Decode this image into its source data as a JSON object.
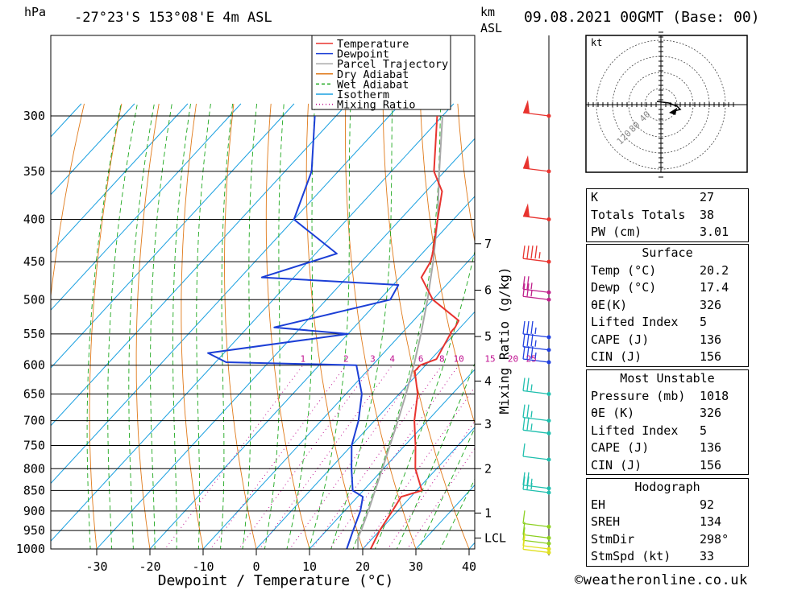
{
  "header": {
    "hpa_label": "hPa",
    "location": "-27°23'S  153°08'E  4m  ASL",
    "km_label": "km",
    "asl_label": "ASL",
    "datetime": "09.08.2021  00GMT  (Base: 00)"
  },
  "legend": [
    {
      "label": "Temperature",
      "color": "#e8342f",
      "style": "solid"
    },
    {
      "label": "Dewpoint",
      "color": "#1c3fd6",
      "style": "solid"
    },
    {
      "label": "Parcel Trajectory",
      "color": "#a8a8a8",
      "style": "solid"
    },
    {
      "label": "Dry Adiabat",
      "color": "#e07a1a",
      "style": "solid"
    },
    {
      "label": "Wet Adiabat",
      "color": "#1fa81f",
      "style": "dashed"
    },
    {
      "label": "Isotherm",
      "color": "#1aa0e0",
      "style": "solid"
    },
    {
      "label": "Mixing Ratio",
      "color": "#c01090",
      "style": "dotted"
    }
  ],
  "chart_data": {
    "type": "skew-t",
    "xlabel": "Dewpoint / Temperature (°C)",
    "ylabel_left": "hPa",
    "ylabel_right": "Mixing Ratio (g/kg)",
    "pressure_ticks": [
      "300",
      "350",
      "400",
      "450",
      "500",
      "550",
      "600",
      "650",
      "700",
      "750",
      "800",
      "850",
      "900",
      "950",
      "1000"
    ],
    "temperature_ticks": [
      "-30",
      "-20",
      "-10",
      "0",
      "10",
      "20",
      "30",
      "40"
    ],
    "km_ticks": [
      {
        "label": "7",
        "p": 428
      },
      {
        "label": "6",
        "p": 487
      },
      {
        "label": "5",
        "p": 554
      },
      {
        "label": "4",
        "p": 627
      },
      {
        "label": "3",
        "p": 707
      },
      {
        "label": "2",
        "p": 800
      },
      {
        "label": "1",
        "p": 905
      },
      {
        "label": "LCL",
        "p": 970
      }
    ],
    "mixing_ratio_labels": [
      "1",
      "2",
      "3",
      "4",
      "6",
      "8",
      "10",
      "15",
      "20",
      "25"
    ],
    "temperature": [
      {
        "p": 1018,
        "t": 20.2
      },
      {
        "p": 1000,
        "t": 21.5
      },
      {
        "p": 950,
        "t": 20
      },
      {
        "p": 900,
        "t": 19
      },
      {
        "p": 865,
        "t": 18.2
      },
      {
        "p": 850,
        "t": 21
      },
      {
        "p": 800,
        "t": 16
      },
      {
        "p": 750,
        "t": 12
      },
      {
        "p": 700,
        "t": 7.5
      },
      {
        "p": 650,
        "t": 3.5
      },
      {
        "p": 610,
        "t": -1
      },
      {
        "p": 600,
        "t": -1
      },
      {
        "p": 590,
        "t": 1
      },
      {
        "p": 545,
        "t": -1
      },
      {
        "p": 540,
        "t": -1
      },
      {
        "p": 530,
        "t": -1.5
      },
      {
        "p": 500,
        "t": -10
      },
      {
        "p": 470,
        "t": -16
      },
      {
        "p": 450,
        "t": -17
      },
      {
        "p": 440,
        "t": -18
      },
      {
        "p": 400,
        "t": -23
      },
      {
        "p": 370,
        "t": -27
      },
      {
        "p": 350,
        "t": -32
      },
      {
        "p": 300,
        "t": -41
      }
    ],
    "dewpoint": [
      {
        "p": 1018,
        "t": 17.4
      },
      {
        "p": 1000,
        "t": 17
      },
      {
        "p": 950,
        "t": 15
      },
      {
        "p": 900,
        "t": 13
      },
      {
        "p": 865,
        "t": 11
      },
      {
        "p": 850,
        "t": 8
      },
      {
        "p": 800,
        "t": 4
      },
      {
        "p": 750,
        "t": 0
      },
      {
        "p": 700,
        "t": -3
      },
      {
        "p": 650,
        "t": -7
      },
      {
        "p": 600,
        "t": -13
      },
      {
        "p": 595,
        "t": -38
      },
      {
        "p": 580,
        "t": -43
      },
      {
        "p": 550,
        "t": -20
      },
      {
        "p": 540,
        "t": -35
      },
      {
        "p": 500,
        "t": -18
      },
      {
        "p": 480,
        "t": -19
      },
      {
        "p": 470,
        "t": -46
      },
      {
        "p": 440,
        "t": -36
      },
      {
        "p": 400,
        "t": -50
      },
      {
        "p": 350,
        "t": -55
      },
      {
        "p": 300,
        "t": -64
      }
    ],
    "parcel": [
      {
        "p": 1018,
        "t": 20.2
      },
      {
        "p": 990,
        "t": 18.5
      },
      {
        "p": 970,
        "t": 17.2
      },
      {
        "p": 950,
        "t": 16.5
      },
      {
        "p": 900,
        "t": 14.5
      },
      {
        "p": 850,
        "t": 12.2
      },
      {
        "p": 800,
        "t": 9.8
      },
      {
        "p": 750,
        "t": 7.2
      },
      {
        "p": 700,
        "t": 4.4
      },
      {
        "p": 650,
        "t": 1.3
      },
      {
        "p": 600,
        "t": -2.2
      },
      {
        "p": 550,
        "t": -6.3
      },
      {
        "p": 500,
        "t": -11
      },
      {
        "p": 450,
        "t": -16.5
      },
      {
        "p": 400,
        "t": -23
      },
      {
        "p": 350,
        "t": -31
      },
      {
        "p": 300,
        "t": -40
      }
    ],
    "wind_barbs": [
      {
        "p": 300,
        "speed_kt": 50,
        "color": "#e8342f"
      },
      {
        "p": 350,
        "speed_kt": 50,
        "color": "#e8342f"
      },
      {
        "p": 400,
        "speed_kt": 50,
        "color": "#e8342f"
      },
      {
        "p": 450,
        "speed_kt": 45,
        "color": "#e8342f"
      },
      {
        "p": 490,
        "speed_kt": 25,
        "color": "#c0208c"
      },
      {
        "p": 500,
        "speed_kt": 25,
        "color": "#c0208c"
      },
      {
        "p": 555,
        "speed_kt": 35,
        "color": "#2040e0"
      },
      {
        "p": 575,
        "speed_kt": 35,
        "color": "#2040e0"
      },
      {
        "p": 595,
        "speed_kt": 35,
        "color": "#2040e0"
      },
      {
        "p": 650,
        "speed_kt": 25,
        "color": "#1fbfae"
      },
      {
        "p": 700,
        "speed_kt": 25,
        "color": "#1fbfae"
      },
      {
        "p": 725,
        "speed_kt": 25,
        "color": "#1fbfae"
      },
      {
        "p": 780,
        "speed_kt": 10,
        "color": "#1fbfae"
      },
      {
        "p": 845,
        "speed_kt": 25,
        "color": "#1fbfae"
      },
      {
        "p": 855,
        "speed_kt": 25,
        "color": "#1fbfae"
      },
      {
        "p": 940,
        "speed_kt": 10,
        "color": "#8cd020"
      },
      {
        "p": 970,
        "speed_kt": 10,
        "color": "#8cd020"
      },
      {
        "p": 985,
        "speed_kt": 10,
        "color": "#8cd020"
      },
      {
        "p": 1000,
        "speed_kt": 10,
        "color": "#e0e020"
      },
      {
        "p": 1010,
        "speed_kt": 10,
        "color": "#e0e020"
      }
    ],
    "hodograph": {
      "unit_label": "kt",
      "ring_labels": [
        "40",
        "80",
        "120"
      ]
    }
  },
  "indices": [
    {
      "label": "K",
      "value": "27"
    },
    {
      "label": "Totals Totals",
      "value": "38"
    },
    {
      "label": "PW (cm)",
      "value": "3.01"
    }
  ],
  "surface": {
    "title": "Surface",
    "rows": [
      {
        "label": "Temp (°C)",
        "value": "20.2"
      },
      {
        "label": "Dewp (°C)",
        "value": "17.4"
      },
      {
        "label": "θE(K)",
        "value": "326"
      },
      {
        "label": "Lifted Index",
        "value": "5"
      },
      {
        "label": "CAPE (J)",
        "value": "136"
      },
      {
        "label": "CIN (J)",
        "value": "156"
      }
    ]
  },
  "most_unstable": {
    "title": "Most Unstable",
    "rows": [
      {
        "label": "Pressure (mb)",
        "value": "1018"
      },
      {
        "label": "θE (K)",
        "value": "326"
      },
      {
        "label": "Lifted Index",
        "value": "5"
      },
      {
        "label": "CAPE (J)",
        "value": "136"
      },
      {
        "label": "CIN (J)",
        "value": "156"
      }
    ]
  },
  "hodograph_table": {
    "title": "Hodograph",
    "rows": [
      {
        "label": "EH",
        "value": "92"
      },
      {
        "label": "SREH",
        "value": "134"
      },
      {
        "label": "StmDir",
        "value": "298°"
      },
      {
        "label": "StmSpd (kt)",
        "value": "33"
      }
    ]
  },
  "footer": {
    "copyright_symbol": "©",
    "site": "weatheronline.co.uk"
  }
}
